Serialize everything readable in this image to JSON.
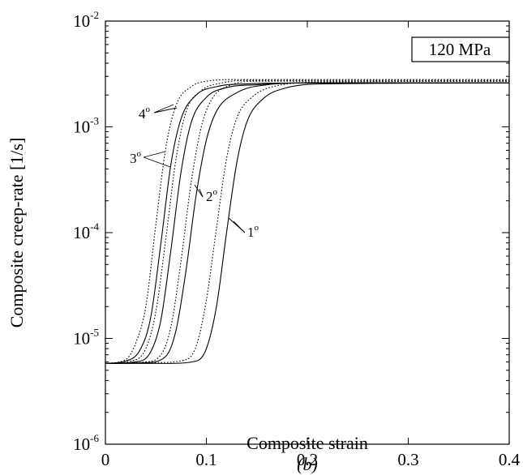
{
  "chart_data": {
    "type": "line",
    "title": "",
    "xlabel": "Composite strain",
    "ylabel": "Composite creep-rate [1/s]",
    "caption": "(b)",
    "annotation_box": "120 MPa",
    "x_scale": "linear",
    "y_scale": "log",
    "xlim": [
      0,
      0.4
    ],
    "ylim": [
      1e-06,
      0.01
    ],
    "x_ticks": [
      0,
      0.1,
      0.2,
      0.3,
      0.4
    ],
    "x_tick_labels": [
      "0",
      "0.1",
      "0.2",
      "0.3",
      "0.4"
    ],
    "y_ticks": [
      1e-06,
      1e-05,
      0.0001,
      0.001,
      0.01
    ],
    "y_tick_labels": [
      {
        "base": "10",
        "exp": "-6"
      },
      {
        "base": "10",
        "exp": "-5"
      },
      {
        "base": "10",
        "exp": "-4"
      },
      {
        "base": "10",
        "exp": "-3"
      },
      {
        "base": "10",
        "exp": "-2"
      }
    ],
    "grid": false,
    "legend": "none",
    "series": [
      {
        "label": "4",
        "style": "solid",
        "x": [
          0,
          0.02,
          0.035,
          0.045,
          0.055,
          0.065,
          0.075,
          0.09,
          0.11,
          0.14,
          0.2,
          0.4
        ],
        "y": [
          5.8e-06,
          6.1e-06,
          8e-06,
          1.6e-05,
          8e-05,
          0.00045,
          0.0012,
          0.002,
          0.0024,
          0.00255,
          0.0026,
          0.0026
        ]
      },
      {
        "label": "4",
        "style": "dotted",
        "x": [
          0,
          0.02,
          0.03,
          0.04,
          0.05,
          0.06,
          0.07,
          0.085,
          0.1,
          0.13,
          0.2,
          0.4
        ],
        "y": [
          5.8e-06,
          6.3e-06,
          9e-06,
          2e-05,
          0.00012,
          0.00065,
          0.0016,
          0.0024,
          0.0027,
          0.0028,
          0.0028,
          0.0028
        ]
      },
      {
        "label": "3",
        "style": "solid",
        "x": [
          0,
          0.03,
          0.045,
          0.055,
          0.065,
          0.075,
          0.085,
          0.1,
          0.12,
          0.15,
          0.2,
          0.4
        ],
        "y": [
          5.8e-06,
          6e-06,
          7.5e-06,
          1.5e-05,
          7e-05,
          0.00038,
          0.0011,
          0.0019,
          0.00235,
          0.0025,
          0.0026,
          0.0026
        ]
      },
      {
        "label": "3",
        "style": "dotted",
        "x": [
          0,
          0.025,
          0.04,
          0.05,
          0.06,
          0.07,
          0.08,
          0.095,
          0.115,
          0.14,
          0.2,
          0.4
        ],
        "y": [
          5.8e-06,
          6.1e-06,
          8e-06,
          1.8e-05,
          9e-05,
          0.0005,
          0.0014,
          0.0022,
          0.0026,
          0.00275,
          0.00275,
          0.00275
        ]
      },
      {
        "label": "2",
        "style": "solid",
        "x": [
          0,
          0.04,
          0.06,
          0.07,
          0.08,
          0.09,
          0.1,
          0.11,
          0.13,
          0.16,
          0.2,
          0.4
        ],
        "y": [
          5.8e-06,
          5.9e-06,
          6.8e-06,
          1.2e-05,
          4.5e-05,
          0.00023,
          0.00075,
          0.0014,
          0.0021,
          0.0025,
          0.0026,
          0.0026
        ]
      },
      {
        "label": "2",
        "style": "dotted",
        "x": [
          0,
          0.04,
          0.055,
          0.065,
          0.075,
          0.085,
          0.095,
          0.105,
          0.125,
          0.15,
          0.2,
          0.4
        ],
        "y": [
          5.8e-06,
          6e-06,
          7e-06,
          1.3e-05,
          5.5e-05,
          0.0003,
          0.001,
          0.0018,
          0.0025,
          0.0027,
          0.0027,
          0.0027
        ]
      },
      {
        "label": "1",
        "style": "solid",
        "x": [
          0,
          0.06,
          0.09,
          0.1,
          0.11,
          0.12,
          0.13,
          0.14,
          0.155,
          0.18,
          0.22,
          0.4
        ],
        "y": [
          5.8e-06,
          5.8e-06,
          6.1e-06,
          8e-06,
          2e-05,
          0.0001,
          0.00045,
          0.0011,
          0.0018,
          0.00235,
          0.00255,
          0.0026
        ]
      },
      {
        "label": "1",
        "style": "dotted",
        "x": [
          0,
          0.05,
          0.08,
          0.09,
          0.1,
          0.11,
          0.12,
          0.13,
          0.145,
          0.17,
          0.22,
          0.4
        ],
        "y": [
          5.8e-06,
          5.9e-06,
          6.3e-06,
          8.5e-06,
          2.3e-05,
          0.00011,
          0.0005,
          0.0012,
          0.0019,
          0.00245,
          0.00265,
          0.0027
        ]
      }
    ],
    "annotations": [
      {
        "text": "4",
        "unit": "o"
      },
      {
        "text": "3",
        "unit": "o"
      },
      {
        "text": "2",
        "unit": "o"
      },
      {
        "text": "1",
        "unit": "o"
      }
    ]
  }
}
